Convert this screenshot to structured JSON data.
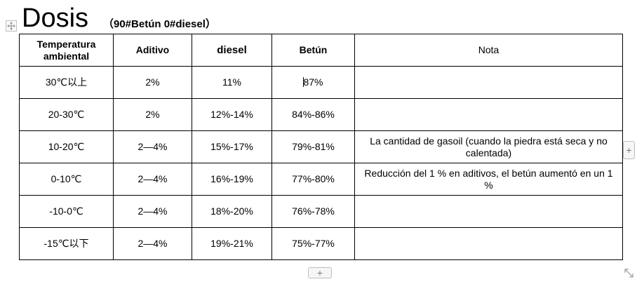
{
  "document": {
    "title": "Dosis",
    "subtitle": "（90#Betún 0#diesel）"
  },
  "table": {
    "headers": {
      "temperature": "Temperatura ambiental",
      "additive": "Aditivo",
      "diesel": "diesel",
      "bitumen": "Betún",
      "note": "Nota"
    },
    "rows": [
      {
        "temperature": "30℃以上",
        "additive": "2%",
        "diesel": "11%",
        "bitumen": "87%",
        "note": ""
      },
      {
        "temperature": "20-30℃",
        "additive": "2%",
        "diesel": "12%-14%",
        "bitumen": "84%-86%",
        "note": ""
      },
      {
        "temperature": "10-20℃",
        "additive": "2—4%",
        "diesel": "15%-17%",
        "bitumen": "79%-81%",
        "note": "La cantidad de gasoil (cuando la piedra está seca y no calentada)"
      },
      {
        "temperature": "0-10℃",
        "additive": "2—4%",
        "diesel": "16%-19%",
        "bitumen": "77%-80%",
        "note": "Reducción del 1 % en aditivos, el betún aumentó en un 1 %"
      },
      {
        "temperature": "-10-0℃",
        "additive": "2—4%",
        "diesel": "18%-20%",
        "bitumen": "76%-78%",
        "note": ""
      },
      {
        "temperature": "-15℃以下",
        "additive": "2—4%",
        "diesel": "19%-21%",
        "bitumen": "75%-77%",
        "note": ""
      }
    ]
  },
  "controls": {
    "add_column_label": "+",
    "add_row_label": "+"
  },
  "icons": {
    "move_handle": "move-icon",
    "add": "plus-icon",
    "resize": "resize-icon"
  }
}
